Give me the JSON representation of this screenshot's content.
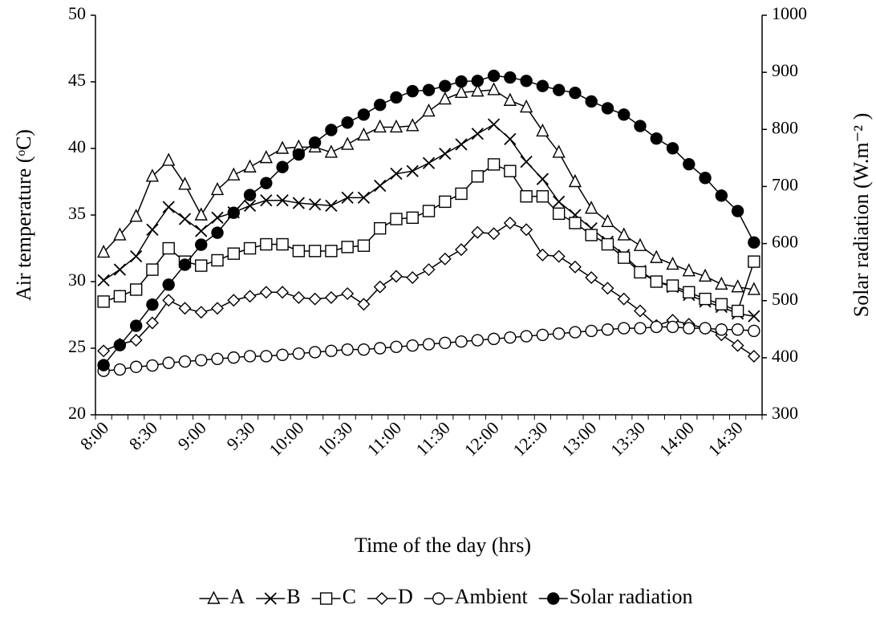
{
  "chart_data": {
    "type": "line",
    "x_label": "Time of the day (hrs)",
    "y_label": "Air temperature (ᵒC)",
    "y2_label": "Solar radiation (W.m⁻² )",
    "categories": [
      "8:00",
      null,
      null,
      "8:30",
      null,
      null,
      "9:00",
      null,
      null,
      "9:30",
      null,
      null,
      "10:00",
      null,
      null,
      "10:30",
      null,
      null,
      "11:00",
      null,
      null,
      "11:30",
      null,
      null,
      "12:00",
      null,
      null,
      "12:30",
      null,
      null,
      "13:00",
      null,
      null,
      "13:30",
      null,
      null,
      "14:00",
      null,
      null,
      "14:30",
      null
    ],
    "ylim": [
      20,
      50
    ],
    "yticks": [
      20,
      25,
      30,
      35,
      40,
      45,
      50
    ],
    "y2lim": [
      300,
      1000
    ],
    "y2ticks": [
      300,
      400,
      500,
      600,
      700,
      800,
      900,
      1000
    ],
    "legend": "bottom",
    "series": [
      {
        "name": "A",
        "color": "#000000",
        "marker": "triangle",
        "values": [
          32.2,
          33.5,
          34.9,
          37.9,
          39.1,
          37.3,
          35.0,
          36.9,
          38.0,
          38.6,
          39.3,
          40.0,
          40.1,
          40.1,
          39.7,
          40.3,
          41.0,
          41.6,
          41.6,
          41.7,
          42.8,
          43.7,
          44.2,
          44.3,
          44.4,
          43.6,
          43.1,
          41.3,
          39.7,
          37.5,
          35.5,
          34.5,
          33.5,
          32.7,
          31.8,
          31.3,
          30.8,
          30.4,
          29.8,
          29.6,
          29.4
        ]
      },
      {
        "name": "B",
        "color": "#000000",
        "marker": "x",
        "values": [
          30.1,
          30.9,
          31.9,
          33.9,
          35.6,
          34.7,
          33.8,
          34.8,
          35.2,
          35.7,
          36.1,
          36.1,
          35.9,
          35.8,
          35.7,
          36.3,
          36.3,
          37.2,
          38.1,
          38.3,
          38.9,
          39.6,
          40.3,
          41.1,
          41.8,
          40.7,
          39.0,
          37.7,
          36.0,
          35.0,
          34.0,
          33.0,
          32.0,
          30.8,
          30.0,
          29.6,
          29.0,
          28.5,
          28.1,
          27.6,
          27.4
        ]
      },
      {
        "name": "C",
        "color": "#000000",
        "marker": "square",
        "values": [
          28.5,
          28.9,
          29.4,
          30.9,
          32.5,
          31.5,
          31.2,
          31.6,
          32.1,
          32.5,
          32.8,
          32.8,
          32.3,
          32.3,
          32.3,
          32.6,
          32.7,
          34.0,
          34.7,
          34.8,
          35.3,
          36.0,
          36.6,
          37.9,
          38.8,
          38.3,
          36.4,
          36.4,
          35.1,
          34.4,
          33.5,
          32.8,
          31.8,
          30.7,
          30.0,
          29.7,
          29.2,
          28.7,
          28.3,
          27.8,
          31.5
        ]
      },
      {
        "name": "D",
        "color": "#000000",
        "marker": "diamond",
        "values": [
          24.8,
          25.3,
          25.6,
          26.9,
          28.6,
          28.0,
          27.7,
          28.0,
          28.6,
          28.9,
          29.2,
          29.2,
          28.8,
          28.7,
          28.8,
          29.1,
          28.3,
          29.6,
          30.4,
          30.3,
          30.9,
          31.7,
          32.4,
          33.7,
          33.6,
          34.4,
          33.9,
          32.0,
          31.9,
          31.1,
          30.3,
          29.5,
          28.7,
          27.8,
          26.7,
          27.1,
          26.8,
          26.5,
          26.0,
          25.2,
          24.4
        ]
      },
      {
        "name": "Ambient",
        "color": "#000000",
        "marker": "circle",
        "values": [
          23.3,
          23.4,
          23.6,
          23.7,
          23.9,
          24.0,
          24.1,
          24.2,
          24.3,
          24.4,
          24.4,
          24.5,
          24.6,
          24.7,
          24.8,
          24.9,
          24.9,
          25.0,
          25.1,
          25.2,
          25.3,
          25.4,
          25.5,
          25.6,
          25.7,
          25.8,
          25.9,
          26.0,
          26.1,
          26.2,
          26.3,
          26.4,
          26.5,
          26.5,
          26.6,
          26.6,
          26.5,
          26.5,
          26.4,
          26.4,
          26.3
        ]
      },
      {
        "name": "Solar radiation",
        "color": "#000000",
        "marker": "filled-circle",
        "axis": "y2",
        "values": [
          387,
          422,
          456,
          493,
          528,
          563,
          598,
          619,
          654,
          685,
          706,
          734,
          756,
          777,
          799,
          812,
          826,
          843,
          856,
          867,
          869,
          876,
          884,
          885,
          894,
          891,
          885,
          876,
          869,
          864,
          849,
          837,
          826,
          806,
          784,
          767,
          739,
          715,
          684,
          657,
          602
        ]
      }
    ]
  }
}
